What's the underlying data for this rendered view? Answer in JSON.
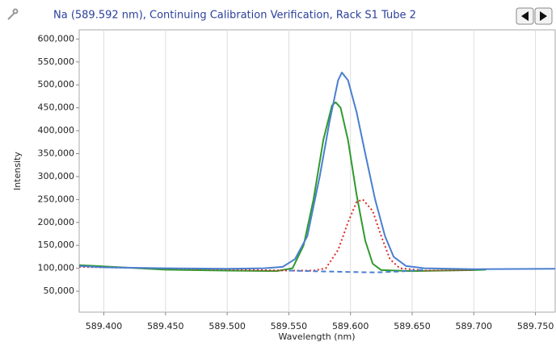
{
  "chart_data": {
    "type": "line",
    "title": "Na (589.592 nm), Continuing Calibration Verification, Rack S1 Tube 2",
    "x_label": "Wavelength (nm)",
    "y_label": "Intensity",
    "xlim": [
      589.38,
      589.766
    ],
    "ylim": [
      0,
      620000
    ],
    "grid": "x",
    "xticks": [
      {
        "value": 589.4,
        "label": "589.400"
      },
      {
        "value": 589.45,
        "label": "589.450"
      },
      {
        "value": 589.5,
        "label": "589.500"
      },
      {
        "value": 589.55,
        "label": "589.550"
      },
      {
        "value": 589.6,
        "label": "589.600"
      },
      {
        "value": 589.65,
        "label": "589.650"
      },
      {
        "value": 589.7,
        "label": "589.700"
      },
      {
        "value": 589.75,
        "label": "589.750"
      }
    ],
    "yticks": [
      {
        "value": 50000,
        "label": "50,000"
      },
      {
        "value": 100000,
        "label": "100,000"
      },
      {
        "value": 150000,
        "label": "150,000"
      },
      {
        "value": 200000,
        "label": "200,000"
      },
      {
        "value": 250000,
        "label": "250,000"
      },
      {
        "value": 300000,
        "label": "300,000"
      },
      {
        "value": 350000,
        "label": "350,000"
      },
      {
        "value": 400000,
        "label": "400,000"
      },
      {
        "value": 450000,
        "label": "450,000"
      },
      {
        "value": 500000,
        "label": "500,000"
      },
      {
        "value": 550000,
        "label": "550,000"
      },
      {
        "value": 600000,
        "label": "600,000"
      }
    ],
    "series": [
      {
        "color": "#2e9a2e",
        "style": "solid",
        "x": [
          589.38,
          589.45,
          589.5,
          589.54,
          589.553,
          589.562,
          589.57,
          589.578,
          589.585,
          589.588,
          589.592,
          589.598,
          589.605,
          589.612,
          589.618,
          589.625,
          589.65,
          589.7,
          589.71
        ],
        "values": [
          107000,
          97000,
          95000,
          94000,
          100000,
          150000,
          250000,
          380000,
          455000,
          462000,
          450000,
          380000,
          260000,
          160000,
          110000,
          96000,
          94000,
          96000,
          97000
        ]
      },
      {
        "color": "#e02828",
        "style": "dotted",
        "x": [
          589.38,
          589.55,
          589.57,
          589.58,
          589.59,
          589.598,
          589.605,
          589.61,
          589.618,
          589.625,
          589.632,
          589.64,
          589.66,
          589.7
        ],
        "values": [
          103000,
          95000,
          95000,
          100000,
          140000,
          200000,
          245000,
          250000,
          225000,
          170000,
          120000,
          100000,
          95000,
          96000
        ]
      },
      {
        "color": "#4a7fd0",
        "style": "dashed",
        "x": [
          589.55,
          589.58,
          589.62,
          589.64,
          589.66
        ],
        "values": [
          95000,
          93000,
          91000,
          93000,
          97000
        ]
      },
      {
        "color": "#4a7fd0",
        "style": "solid",
        "x": [
          589.38,
          589.4,
          589.45,
          589.5,
          589.53,
          589.545,
          589.555,
          589.565,
          589.575,
          589.583,
          589.59,
          589.593,
          589.598,
          589.605,
          589.612,
          589.62,
          589.628,
          589.635,
          589.645,
          589.66,
          589.7,
          589.766
        ],
        "values": [
          105000,
          102000,
          100000,
          99000,
          100000,
          103000,
          120000,
          170000,
          300000,
          420000,
          510000,
          527000,
          510000,
          440000,
          350000,
          250000,
          170000,
          125000,
          105000,
          100000,
          98000,
          99000
        ]
      }
    ]
  }
}
